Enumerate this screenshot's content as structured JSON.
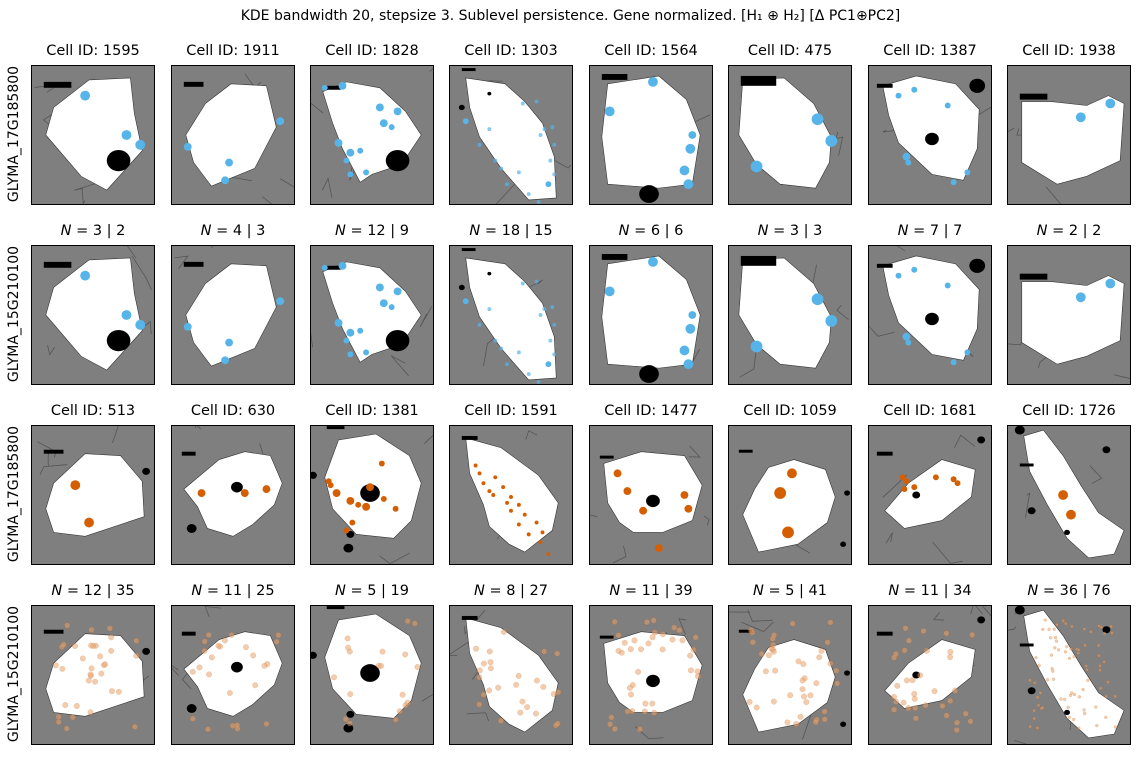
{
  "suptitle": "KDE bandwidth 20, stepsize 3. Sublevel persistence. Gene normalized. [H₁ ⊕ H₂] [Δ PC1⊕PC2]",
  "row_labels": [
    "GLYMA_17G185800",
    "GLYMA_15G210100",
    "GLYMA_17G185800",
    "GLYMA_15G210100"
  ],
  "titles": [
    [
      "Cell ID: 1595",
      "Cell ID: 1911",
      "Cell ID: 1828",
      "Cell ID: 1303",
      "Cell ID: 1564",
      "Cell ID: 475",
      "Cell ID: 1387",
      "Cell ID: 1938"
    ],
    [
      "N = 3 | 2",
      "N = 4 | 3",
      "N = 12 | 9",
      "N = 18 | 15",
      "N = 6 | 6",
      "N = 3 | 3",
      "N = 7 | 7",
      "N = 2 | 2"
    ],
    [
      "Cell ID: 513",
      "Cell ID: 630",
      "Cell ID: 1381",
      "Cell ID: 1591",
      "Cell ID: 1477",
      "Cell ID: 1059",
      "Cell ID: 1681",
      "Cell ID: 1726"
    ],
    [
      "N = 12 | 35",
      "N = 11 | 25",
      "N = 5 | 19",
      "N = 8 | 27",
      "N = 11 | 39",
      "N = 5 | 41",
      "N = 11 | 34",
      "N = 36 | 76"
    ]
  ],
  "colors": {
    "panel_bg": "#7f7f7f",
    "cell": "#ffffff",
    "blue": "#56b4e9",
    "orange": "#d55e00",
    "orange_light": "#e7a36e",
    "black": "#000000"
  },
  "chart_data": {
    "type": "scatter",
    "title": "KDE bandwidth 20, stepsize 3. Sublevel persistence. Gene normalized. [H₁ ⊕ H₂] [Δ PC1⊕PC2]",
    "rows": [
      "GLYMA_17G185800",
      "GLYMA_15G210100",
      "GLYMA_17G185800",
      "GLYMA_15G210100"
    ],
    "cells_top": [
      1595,
      1911,
      1828,
      1303,
      1564,
      475,
      1387,
      1938
    ],
    "cells_bottom": [
      513,
      630,
      1381,
      1591,
      1477,
      1059,
      1681,
      1726
    ],
    "counts_top": [
      [
        3,
        2
      ],
      [
        4,
        3
      ],
      [
        12,
        9
      ],
      [
        18,
        15
      ],
      [
        6,
        6
      ],
      [
        3,
        3
      ],
      [
        7,
        7
      ],
      [
        2,
        2
      ]
    ],
    "counts_bottom": [
      [
        12,
        35
      ],
      [
        11,
        25
      ],
      [
        5,
        19
      ],
      [
        8,
        27
      ],
      [
        11,
        39
      ],
      [
        5,
        41
      ],
      [
        11,
        34
      ],
      [
        36,
        76
      ]
    ],
    "axes": "off"
  }
}
